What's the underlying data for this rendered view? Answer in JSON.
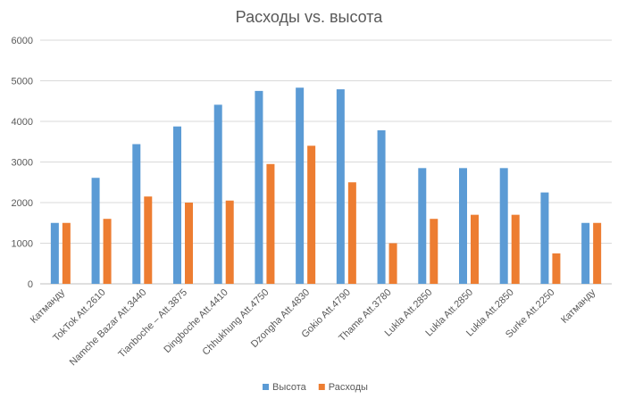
{
  "chart_data": {
    "type": "bar",
    "title": "Расходы vs. высота",
    "xlabel": "",
    "ylabel": "",
    "ylim": [
      0,
      6000
    ],
    "yticks": [
      0,
      1000,
      2000,
      3000,
      4000,
      5000,
      6000
    ],
    "grid": true,
    "legend_position": "bottom",
    "categories": [
      "Катманду",
      "TokTok Att.2610",
      "Namche Bazar Att.3440",
      "Tianboche – Att.3875",
      "Dingboche  Att.4410",
      "Chhukhung  Att.4750",
      "Dzongha  Att.4830",
      "Gokio Att.4790",
      "Thame Att.3780",
      "Lukla Att.2850",
      "Lukla Att.2850",
      "Lukla Att.2850",
      "Surke Att.2250",
      "Катманду"
    ],
    "series": [
      {
        "name": "Высота",
        "color": "#5b9bd5",
        "values": [
          1500,
          2610,
          3440,
          3875,
          4410,
          4750,
          4830,
          4790,
          3780,
          2850,
          2850,
          2850,
          2250,
          1500
        ]
      },
      {
        "name": "Расходы",
        "color": "#ed7d31",
        "values": [
          1500,
          1600,
          2150,
          2000,
          2050,
          2950,
          3400,
          2500,
          1000,
          1600,
          1700,
          1700,
          750,
          1500
        ]
      }
    ]
  }
}
